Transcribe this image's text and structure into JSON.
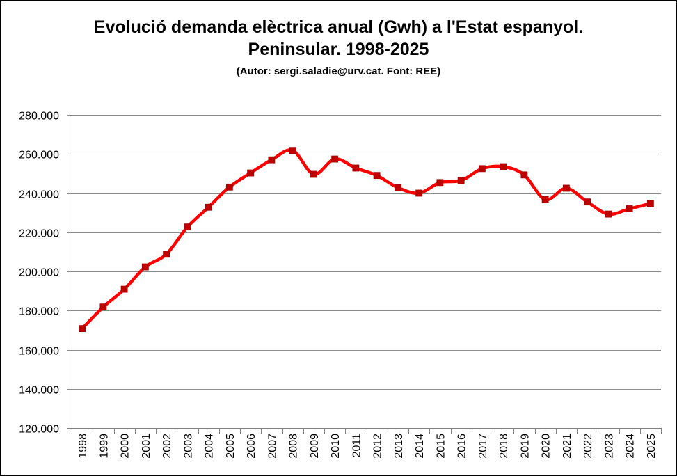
{
  "chart_data": {
    "type": "line",
    "title_line1": "Evolució demanda elèctrica anual (Gwh) a l'Estat espanyol.",
    "title_line2": "Peninsular. 1998-2025",
    "subtitle": "(Autor: sergi.saladie@urv.cat. Font: REE)",
    "xlabel": "",
    "ylabel": "",
    "ylim": [
      120000,
      280000
    ],
    "yticks": [
      120000,
      140000,
      160000,
      180000,
      200000,
      220000,
      240000,
      260000,
      280000
    ],
    "ytick_labels": [
      "120.000",
      "140.000",
      "160.000",
      "180.000",
      "200.000",
      "220.000",
      "240.000",
      "260.000",
      "280.000"
    ],
    "grid": true,
    "legend": "none",
    "categories": [
      "1998",
      "1999",
      "2000",
      "2001",
      "2002",
      "2003",
      "2004",
      "2005",
      "2006",
      "2007",
      "2008",
      "2009",
      "2010",
      "2011",
      "2012",
      "2013",
      "2014",
      "2015",
      "2016",
      "2017",
      "2018",
      "2019",
      "2020",
      "2021",
      "2022",
      "2023",
      "2024",
      "2025"
    ],
    "series": [
      {
        "color": "#ff0000",
        "marker_color": "#c00000",
        "values": [
          170800,
          181800,
          190900,
          202300,
          208800,
          222700,
          232800,
          243100,
          250300,
          257000,
          261800,
          249600,
          257400,
          252800,
          249000,
          242800,
          240000,
          245400,
          246400,
          252500,
          253500,
          249300,
          236700,
          242500,
          235500,
          229300,
          232000,
          234700
        ]
      }
    ]
  }
}
